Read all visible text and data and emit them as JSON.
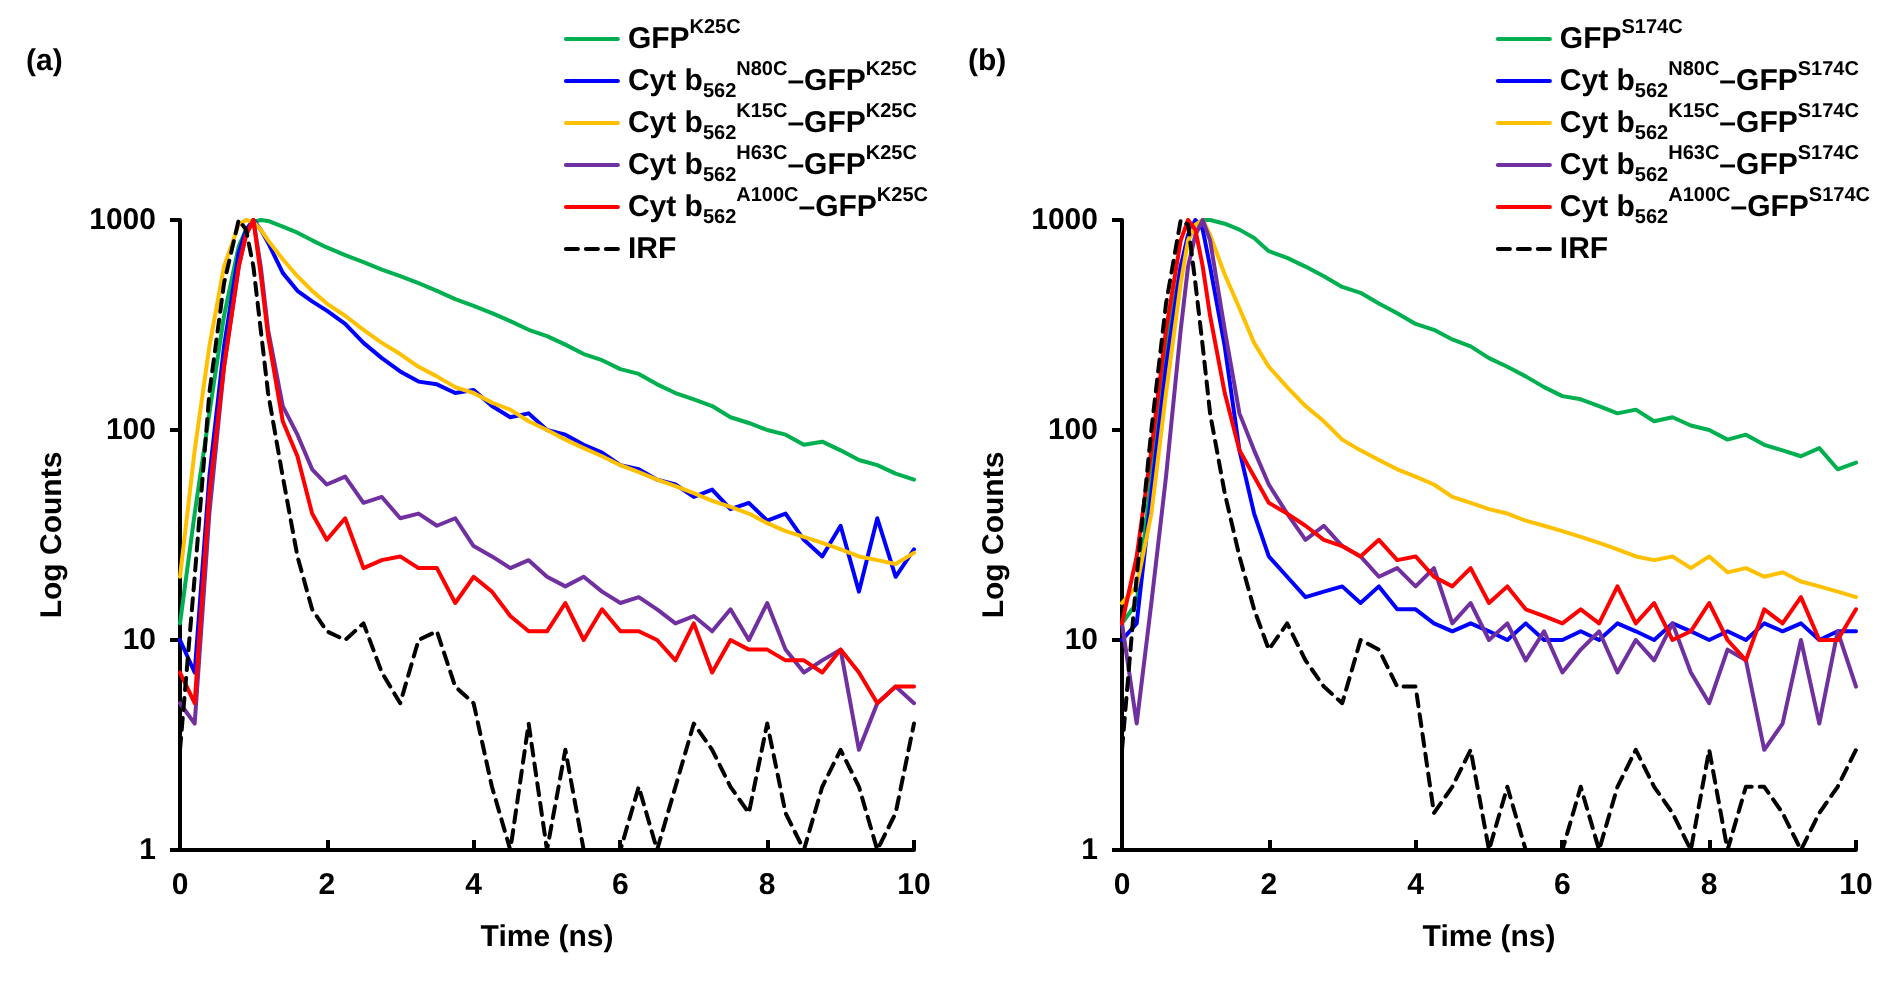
{
  "chart_data": [
    {
      "type": "line",
      "title": "(a)",
      "xlabel": "Time (ns)",
      "ylabel": "Log Counts",
      "log": "y",
      "grid": false,
      "legend": "top right",
      "marker": "none",
      "xlim": [
        0,
        10
      ],
      "xticks": [
        0,
        2,
        4,
        6,
        8,
        10
      ],
      "ylim": [
        1,
        1000
      ],
      "yticks": [
        1,
        10,
        100,
        1000
      ],
      "x": [
        0,
        0.2,
        0.4,
        0.6,
        0.8,
        0.9,
        1,
        1.1,
        1.2,
        1.4,
        1.6,
        1.8,
        2,
        2.25,
        2.5,
        2.75,
        3,
        3.25,
        3.5,
        3.75,
        4,
        4.25,
        4.5,
        4.75,
        5,
        5.25,
        5.5,
        5.75,
        6,
        6.25,
        6.5,
        6.75,
        7,
        7.25,
        7.5,
        7.75,
        8,
        8.25,
        8.5,
        8.75,
        9,
        9.25,
        9.5,
        9.75,
        10
      ],
      "series": [
        {
          "name": "GFP$^{K25C}$",
          "color": "#00b050",
          "values": [
            12,
            40,
            120,
            350,
            750,
            900,
            980,
            1000,
            990,
            930,
            870,
            800,
            740,
            680,
            630,
            580,
            540,
            500,
            460,
            420,
            390,
            360,
            330,
            300,
            280,
            255,
            230,
            215,
            195,
            185,
            165,
            150,
            140,
            130,
            115,
            108,
            100,
            95,
            85,
            88,
            80,
            72,
            68,
            62,
            58
          ]
        },
        {
          "name": "Cyt b$_{562}$$^{N80C}$–GFP$^{K25C}$",
          "color": "#0000ff",
          "values": [
            10,
            7,
            60,
            250,
            700,
            900,
            1000,
            900,
            780,
            560,
            460,
            410,
            370,
            320,
            260,
            220,
            190,
            170,
            165,
            150,
            155,
            130,
            115,
            120,
            100,
            95,
            85,
            78,
            68,
            65,
            58,
            55,
            48,
            52,
            42,
            45,
            37,
            40,
            30,
            25,
            35,
            17,
            38,
            20,
            27
          ]
        },
        {
          "name": "Cyt b$_{562}$$^{K15C}$–GFP$^{K25C}$",
          "color": "#ffc000",
          "values": [
            20,
            80,
            250,
            600,
            950,
            1000,
            980,
            900,
            800,
            650,
            540,
            460,
            400,
            350,
            300,
            260,
            230,
            200,
            180,
            160,
            150,
            135,
            125,
            110,
            100,
            90,
            82,
            75,
            68,
            63,
            58,
            54,
            50,
            46,
            43,
            40,
            36,
            33,
            31,
            29,
            27,
            25,
            24,
            23,
            26
          ]
        },
        {
          "name": "Cyt b$_{562}$$^{H63C}$–GFP$^{K25C}$",
          "color": "#7030a0",
          "values": [
            5,
            4,
            40,
            200,
            600,
            850,
            1000,
            600,
            300,
            130,
            95,
            65,
            55,
            60,
            45,
            48,
            38,
            40,
            35,
            38,
            28,
            25,
            22,
            24,
            20,
            18,
            20,
            17,
            15,
            16,
            14,
            12,
            13,
            11,
            14,
            10,
            15,
            9,
            7,
            8,
            9,
            3,
            5,
            6,
            5
          ]
        },
        {
          "name": "Cyt b$_{562}$$^{A100C}$–GFP$^{K25C}$",
          "color": "#ff0000",
          "values": [
            7,
            5,
            50,
            200,
            600,
            850,
            1000,
            550,
            280,
            110,
            75,
            40,
            30,
            38,
            22,
            24,
            25,
            22,
            22,
            15,
            20,
            17,
            13,
            11,
            11,
            15,
            10,
            14,
            11,
            11,
            10,
            8,
            12,
            7,
            10,
            9,
            9,
            8,
            8,
            7,
            9,
            7,
            5,
            6,
            6
          ]
        },
        {
          "name": "IRF",
          "color": "#000000",
          "line_style": "dashed",
          "values": [
            3,
            20,
            150,
            500,
            1000,
            900,
            600,
            300,
            150,
            60,
            25,
            14,
            11,
            10,
            12,
            7,
            5,
            10,
            11,
            6,
            5,
            2,
            1,
            4,
            1,
            3,
            1,
            1,
            1,
            2,
            1,
            2,
            4,
            3,
            2,
            1.5,
            4,
            1.5,
            1,
            2,
            3,
            2,
            1,
            1.5,
            4
          ]
        }
      ]
    },
    {
      "type": "line",
      "title": "(b)",
      "xlabel": "Time (ns)",
      "ylabel": "Log Counts",
      "log": "y",
      "grid": false,
      "legend": "top right",
      "marker": "none",
      "xlim": [
        0,
        10
      ],
      "xticks": [
        0,
        2,
        4,
        6,
        8,
        10
      ],
      "ylim": [
        1,
        1000
      ],
      "yticks": [
        1,
        10,
        100,
        1000
      ],
      "x": [
        0,
        0.2,
        0.4,
        0.6,
        0.8,
        0.9,
        1,
        1.1,
        1.2,
        1.4,
        1.6,
        1.8,
        2,
        2.25,
        2.5,
        2.75,
        3,
        3.25,
        3.5,
        3.75,
        4,
        4.25,
        4.5,
        4.75,
        5,
        5.25,
        5.5,
        5.75,
        6,
        6.25,
        6.5,
        6.75,
        7,
        7.25,
        7.5,
        7.75,
        8,
        8.25,
        8.5,
        8.75,
        9,
        9.25,
        9.5,
        9.75,
        10
      ],
      "series": [
        {
          "name": "GFP$^{S174C}$",
          "color": "#00b050",
          "values": [
            12,
            15,
            60,
            250,
            600,
            800,
            950,
            1000,
            1000,
            960,
            900,
            820,
            710,
            660,
            600,
            540,
            480,
            450,
            400,
            360,
            320,
            300,
            270,
            250,
            220,
            200,
            180,
            160,
            145,
            140,
            130,
            120,
            125,
            110,
            115,
            105,
            100,
            90,
            95,
            85,
            80,
            75,
            82,
            65,
            70
          ]
        },
        {
          "name": "Cyt b$_{562}$$^{N80C}$–GFP$^{S174C}$",
          "color": "#0000ff",
          "values": [
            10,
            12,
            50,
            200,
            600,
            850,
            1000,
            900,
            600,
            250,
            80,
            40,
            25,
            20,
            16,
            17,
            18,
            15,
            18,
            14,
            14,
            12,
            11,
            12,
            11,
            10,
            12,
            10,
            10,
            11,
            10,
            12,
            11,
            10,
            12,
            11,
            10,
            11,
            10,
            12,
            11,
            12,
            10,
            11,
            11
          ]
        },
        {
          "name": "Cyt b$_{562}$$^{K15C}$–GFP$^{S174C}$",
          "color": "#ffc000",
          "values": [
            15,
            18,
            40,
            150,
            500,
            800,
            950,
            1000,
            850,
            550,
            380,
            260,
            200,
            160,
            130,
            110,
            90,
            80,
            72,
            65,
            60,
            55,
            48,
            45,
            42,
            40,
            37,
            35,
            33,
            31,
            29,
            27,
            25,
            24,
            25,
            22,
            25,
            21,
            22,
            20,
            21,
            19,
            18,
            17,
            16
          ]
        },
        {
          "name": "Cyt b$_{562}$$^{H63C}$–GFP$^{S174C}$",
          "color": "#7030a0",
          "values": [
            12,
            4,
            15,
            60,
            300,
            600,
            850,
            1000,
            800,
            300,
            120,
            80,
            55,
            40,
            30,
            35,
            28,
            25,
            20,
            22,
            18,
            22,
            12,
            15,
            10,
            12,
            8,
            11,
            7,
            9,
            11,
            7,
            10,
            8,
            12,
            7,
            5,
            9,
            8,
            3,
            4,
            10,
            4,
            11,
            6
          ]
        },
        {
          "name": "Cyt b$_{562}$$^{A100C}$–GFP$^{S174C}$",
          "color": "#ff0000",
          "values": [
            12,
            25,
            80,
            300,
            800,
            1000,
            900,
            600,
            350,
            150,
            80,
            60,
            45,
            40,
            35,
            30,
            28,
            25,
            30,
            24,
            25,
            20,
            18,
            22,
            15,
            18,
            14,
            13,
            12,
            14,
            12,
            18,
            12,
            15,
            10,
            11,
            15,
            10,
            8,
            14,
            12,
            16,
            10,
            10,
            14
          ]
        },
        {
          "name": "IRF",
          "color": "#000000",
          "line_style": "dashed",
          "values": [
            3,
            20,
            100,
            400,
            1000,
            950,
            500,
            250,
            120,
            50,
            25,
            14,
            9,
            12,
            8,
            6,
            5,
            10,
            9,
            6,
            6,
            1.5,
            2,
            3,
            1,
            2,
            1,
            1,
            1,
            2,
            1,
            2,
            3,
            2,
            1.5,
            1,
            3,
            1,
            2,
            2,
            1.5,
            1,
            1.5,
            2,
            3
          ]
        }
      ]
    }
  ]
}
